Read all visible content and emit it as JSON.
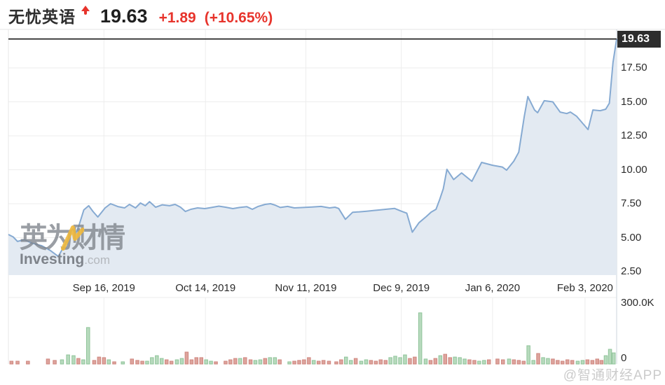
{
  "header": {
    "title": "无忧英语",
    "price": "19.63",
    "change": "+1.89",
    "change_pct": "(+10.65%)",
    "accent_red": "#e7342c"
  },
  "watermark": {
    "cn": "英为财情",
    "en_bold": "Investing",
    "en_tld": ".com"
  },
  "credit": "@智通财经APP",
  "chart_data": {
    "type": "area",
    "title": "无忧英语 (51Talk) share price with volume",
    "x_ticks": [
      {
        "label": "Sep 16, 2019",
        "f": 0.157
      },
      {
        "label": "Oct 14, 2019",
        "f": 0.324
      },
      {
        "label": "Nov 11, 2019",
        "f": 0.489
      },
      {
        "label": "Dec 9, 2019",
        "f": 0.646
      },
      {
        "label": "Jan 6, 2020",
        "f": 0.796
      },
      {
        "label": "Feb 3, 2020",
        "f": 0.948
      }
    ],
    "price_ticks": [
      {
        "label": "17.50",
        "p": 17.5
      },
      {
        "label": "15.00",
        "p": 15.0
      },
      {
        "label": "12.50",
        "p": 12.5
      },
      {
        "label": "10.00",
        "p": 10.0
      },
      {
        "label": "7.50",
        "p": 7.5
      },
      {
        "label": "5.00",
        "p": 5.0
      },
      {
        "label": "2.50",
        "p": 2.5
      }
    ],
    "price_range_shown": [
      2.3,
      20.3
    ],
    "current_price": {
      "label": "19.63",
      "value": 19.63
    },
    "volume_axis": {
      "top_label": "300.0K",
      "bottom_label": "0",
      "max_k": 300
    },
    "grid": true,
    "colors": {
      "line": "#86aad2",
      "fill": "#e3eaf2",
      "grid": "#ededed",
      "current_price_line": "#1a1a1a",
      "vol_up_fill": "#b7dabd",
      "vol_up_stroke": "#8fc49a",
      "vol_down_fill": "#dda49d",
      "vol_down_stroke": "#cf867e"
    },
    "series_price": [
      [
        0.0,
        5.23
      ],
      [
        0.008,
        5.05
      ],
      [
        0.015,
        4.72
      ],
      [
        0.026,
        4.85
      ],
      [
        0.038,
        4.61
      ],
      [
        0.055,
        4.4
      ],
      [
        0.069,
        4.05
      ],
      [
        0.082,
        3.62
      ],
      [
        0.096,
        4.72
      ],
      [
        0.105,
        5.64
      ],
      [
        0.111,
        5.33
      ],
      [
        0.116,
        5.9
      ],
      [
        0.124,
        7.04
      ],
      [
        0.132,
        7.35
      ],
      [
        0.139,
        6.93
      ],
      [
        0.147,
        6.52
      ],
      [
        0.159,
        7.19
      ],
      [
        0.168,
        7.5
      ],
      [
        0.18,
        7.29
      ],
      [
        0.191,
        7.19
      ],
      [
        0.199,
        7.45
      ],
      [
        0.209,
        7.19
      ],
      [
        0.217,
        7.55
      ],
      [
        0.225,
        7.35
      ],
      [
        0.232,
        7.65
      ],
      [
        0.242,
        7.24
      ],
      [
        0.253,
        7.42
      ],
      [
        0.265,
        7.35
      ],
      [
        0.274,
        7.45
      ],
      [
        0.283,
        7.24
      ],
      [
        0.291,
        6.93
      ],
      [
        0.3,
        7.09
      ],
      [
        0.311,
        7.19
      ],
      [
        0.323,
        7.14
      ],
      [
        0.334,
        7.22
      ],
      [
        0.346,
        7.32
      ],
      [
        0.357,
        7.24
      ],
      [
        0.369,
        7.14
      ],
      [
        0.38,
        7.22
      ],
      [
        0.392,
        7.28
      ],
      [
        0.401,
        7.09
      ],
      [
        0.41,
        7.29
      ],
      [
        0.422,
        7.45
      ],
      [
        0.431,
        7.5
      ],
      [
        0.438,
        7.4
      ],
      [
        0.447,
        7.22
      ],
      [
        0.459,
        7.3
      ],
      [
        0.47,
        7.19
      ],
      [
        0.485,
        7.22
      ],
      [
        0.499,
        7.26
      ],
      [
        0.514,
        7.3
      ],
      [
        0.528,
        7.19
      ],
      [
        0.537,
        7.24
      ],
      [
        0.543,
        7.15
      ],
      [
        0.554,
        6.35
      ],
      [
        0.566,
        6.87
      ],
      [
        0.577,
        6.9
      ],
      [
        0.589,
        6.95
      ],
      [
        0.6,
        7.0
      ],
      [
        0.612,
        7.05
      ],
      [
        0.623,
        7.1
      ],
      [
        0.635,
        7.15
      ],
      [
        0.646,
        6.95
      ],
      [
        0.655,
        6.8
      ],
      [
        0.664,
        5.4
      ],
      [
        0.675,
        6.1
      ],
      [
        0.687,
        6.55
      ],
      [
        0.695,
        6.88
      ],
      [
        0.703,
        7.09
      ],
      [
        0.709,
        7.8
      ],
      [
        0.715,
        8.6
      ],
      [
        0.721,
        10.03
      ],
      [
        0.732,
        9.28
      ],
      [
        0.745,
        9.77
      ],
      [
        0.762,
        9.15
      ],
      [
        0.778,
        10.54
      ],
      [
        0.796,
        10.33
      ],
      [
        0.812,
        10.2
      ],
      [
        0.819,
        9.97
      ],
      [
        0.831,
        10.64
      ],
      [
        0.839,
        11.3
      ],
      [
        0.848,
        13.9
      ],
      [
        0.854,
        15.39
      ],
      [
        0.865,
        14.4
      ],
      [
        0.87,
        14.2
      ],
      [
        0.881,
        15.08
      ],
      [
        0.895,
        15.0
      ],
      [
        0.907,
        14.25
      ],
      [
        0.918,
        14.14
      ],
      [
        0.924,
        14.25
      ],
      [
        0.934,
        13.95
      ],
      [
        0.953,
        12.96
      ],
      [
        0.961,
        14.4
      ],
      [
        0.973,
        14.35
      ],
      [
        0.982,
        14.46
      ],
      [
        0.988,
        14.9
      ],
      [
        0.994,
        17.9
      ],
      [
        1.0,
        19.63
      ]
    ],
    "series_volume_k": [
      [
        0.005,
        14,
        "r"
      ],
      [
        0.015,
        14,
        "r"
      ],
      [
        0.032,
        14,
        "r"
      ],
      [
        0.065,
        25,
        "r"
      ],
      [
        0.076,
        18,
        "r"
      ],
      [
        0.088,
        21,
        "g"
      ],
      [
        0.098,
        46,
        "g"
      ],
      [
        0.107,
        42,
        "g"
      ],
      [
        0.115,
        28,
        "r"
      ],
      [
        0.123,
        21,
        "g"
      ],
      [
        0.131,
        184,
        "g"
      ],
      [
        0.141,
        18,
        "r"
      ],
      [
        0.149,
        35,
        "r"
      ],
      [
        0.157,
        32,
        "r"
      ],
      [
        0.165,
        21,
        "g"
      ],
      [
        0.174,
        11,
        "r"
      ],
      [
        0.188,
        11,
        "g"
      ],
      [
        0.203,
        25,
        "r"
      ],
      [
        0.212,
        18,
        "r"
      ],
      [
        0.22,
        14,
        "r"
      ],
      [
        0.228,
        14,
        "g"
      ],
      [
        0.236,
        32,
        "g"
      ],
      [
        0.244,
        42,
        "g"
      ],
      [
        0.252,
        28,
        "g"
      ],
      [
        0.26,
        21,
        "r"
      ],
      [
        0.268,
        14,
        "r"
      ],
      [
        0.277,
        21,
        "g"
      ],
      [
        0.285,
        28,
        "g"
      ],
      [
        0.293,
        60,
        "r"
      ],
      [
        0.301,
        21,
        "r"
      ],
      [
        0.309,
        32,
        "r"
      ],
      [
        0.317,
        32,
        "r"
      ],
      [
        0.325,
        21,
        "g"
      ],
      [
        0.333,
        14,
        "g"
      ],
      [
        0.341,
        11,
        "r"
      ],
      [
        0.357,
        14,
        "r"
      ],
      [
        0.365,
        21,
        "r"
      ],
      [
        0.373,
        28,
        "r"
      ],
      [
        0.381,
        28,
        "g"
      ],
      [
        0.389,
        32,
        "r"
      ],
      [
        0.398,
        21,
        "r"
      ],
      [
        0.406,
        18,
        "g"
      ],
      [
        0.414,
        21,
        "g"
      ],
      [
        0.422,
        28,
        "r"
      ],
      [
        0.43,
        32,
        "g"
      ],
      [
        0.438,
        32,
        "g"
      ],
      [
        0.446,
        21,
        "r"
      ],
      [
        0.462,
        11,
        "g"
      ],
      [
        0.47,
        14,
        "r"
      ],
      [
        0.478,
        18,
        "r"
      ],
      [
        0.486,
        21,
        "r"
      ],
      [
        0.494,
        32,
        "r"
      ],
      [
        0.502,
        18,
        "g"
      ],
      [
        0.51,
        14,
        "r"
      ],
      [
        0.518,
        18,
        "r"
      ],
      [
        0.527,
        14,
        "r"
      ],
      [
        0.539,
        11,
        "r"
      ],
      [
        0.547,
        21,
        "r"
      ],
      [
        0.555,
        35,
        "g"
      ],
      [
        0.563,
        18,
        "g"
      ],
      [
        0.571,
        28,
        "r"
      ],
      [
        0.58,
        14,
        "g"
      ],
      [
        0.588,
        21,
        "g"
      ],
      [
        0.596,
        18,
        "r"
      ],
      [
        0.604,
        14,
        "r"
      ],
      [
        0.612,
        21,
        "r"
      ],
      [
        0.62,
        18,
        "r"
      ],
      [
        0.628,
        32,
        "g"
      ],
      [
        0.636,
        39,
        "g"
      ],
      [
        0.644,
        32,
        "g"
      ],
      [
        0.652,
        46,
        "g"
      ],
      [
        0.66,
        28,
        "r"
      ],
      [
        0.668,
        35,
        "r"
      ],
      [
        0.677,
        258,
        "g"
      ],
      [
        0.686,
        25,
        "g"
      ],
      [
        0.694,
        18,
        "r"
      ],
      [
        0.702,
        28,
        "r"
      ],
      [
        0.71,
        42,
        "g"
      ],
      [
        0.718,
        49,
        "r"
      ],
      [
        0.726,
        32,
        "r"
      ],
      [
        0.734,
        35,
        "g"
      ],
      [
        0.742,
        32,
        "g"
      ],
      [
        0.75,
        25,
        "g"
      ],
      [
        0.758,
        21,
        "r"
      ],
      [
        0.766,
        18,
        "r"
      ],
      [
        0.774,
        14,
        "g"
      ],
      [
        0.782,
        18,
        "g"
      ],
      [
        0.79,
        21,
        "r"
      ],
      [
        0.804,
        25,
        "r"
      ],
      [
        0.813,
        21,
        "r"
      ],
      [
        0.823,
        25,
        "g"
      ],
      [
        0.831,
        21,
        "r"
      ],
      [
        0.839,
        18,
        "r"
      ],
      [
        0.847,
        14,
        "r"
      ],
      [
        0.855,
        92,
        "g"
      ],
      [
        0.863,
        18,
        "g"
      ],
      [
        0.871,
        53,
        "r"
      ],
      [
        0.879,
        32,
        "g"
      ],
      [
        0.887,
        28,
        "g"
      ],
      [
        0.895,
        25,
        "r"
      ],
      [
        0.903,
        18,
        "r"
      ],
      [
        0.911,
        14,
        "r"
      ],
      [
        0.919,
        21,
        "r"
      ],
      [
        0.927,
        18,
        "r"
      ],
      [
        0.936,
        14,
        "g"
      ],
      [
        0.944,
        18,
        "g"
      ],
      [
        0.952,
        21,
        "r"
      ],
      [
        0.96,
        18,
        "r"
      ],
      [
        0.968,
        25,
        "r"
      ],
      [
        0.975,
        18,
        "r"
      ],
      [
        0.982,
        42,
        "g"
      ],
      [
        0.989,
        74,
        "g"
      ],
      [
        0.995,
        56,
        "g"
      ]
    ]
  }
}
